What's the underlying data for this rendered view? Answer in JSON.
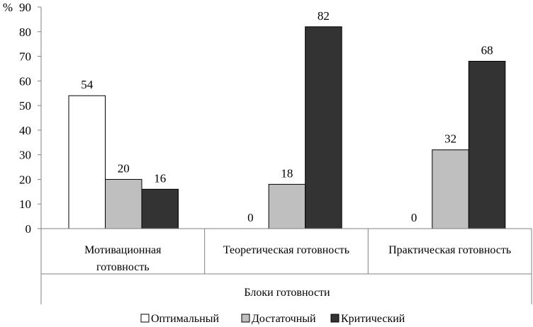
{
  "chart_data": {
    "type": "bar",
    "ylabel": "%",
    "xlabel": "Блоки готовности",
    "ylim": [
      0,
      90
    ],
    "yticks": [
      "0",
      "10",
      "20",
      "30",
      "40",
      "50",
      "60",
      "70",
      "80",
      "90"
    ],
    "grid": false,
    "legend_position": "bottom",
    "categories": [
      {
        "line1": "Мотивационная",
        "line2": "готовность"
      },
      {
        "line1": "Теоретическая готовность",
        "line2": ""
      },
      {
        "line1": "Практическая готовность",
        "line2": ""
      }
    ],
    "series": [
      {
        "name": "Оптимальный",
        "values": [
          54,
          0,
          0
        ],
        "color": "#ffffff"
      },
      {
        "name": "Достаточный",
        "values": [
          20,
          18,
          32
        ],
        "color": "#bfbfbf"
      },
      {
        "name": "Критический",
        "values": [
          16,
          82,
          68
        ],
        "color": "#333333"
      }
    ]
  }
}
